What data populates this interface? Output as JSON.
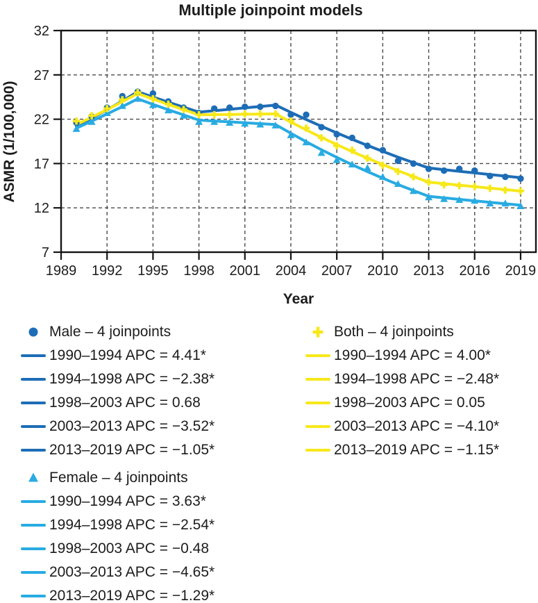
{
  "title": "Multiple joinpoint models",
  "chart_data": {
    "type": "line",
    "title": "Multiple joinpoint models",
    "xlabel": "Year",
    "ylabel": "ASMR (1/100,000)",
    "xlim": [
      1989,
      2020
    ],
    "ylim": [
      7,
      32
    ],
    "x_ticks": [
      1989,
      1992,
      1995,
      1998,
      2001,
      2004,
      2007,
      2010,
      2013,
      2016,
      2019
    ],
    "y_ticks": [
      7,
      12,
      17,
      22,
      27,
      32
    ],
    "grid": "dashed",
    "grid_color": "#4a4a4a",
    "frame_color": "#141414",
    "legend_position": "below",
    "series": [
      {
        "key": "male",
        "name": "Male – 4 joinpoints",
        "marker": "circle",
        "color": "#1d6db6",
        "trend_joinpoints": [
          [
            1990,
            21.2
          ],
          [
            1994,
            25.1
          ],
          [
            1998,
            22.8
          ],
          [
            2003,
            23.6
          ],
          [
            2013,
            16.5
          ],
          [
            2019,
            15.4
          ]
        ],
        "observed": {
          "years": [
            1990,
            1991,
            1992,
            1993,
            1994,
            1995,
            1996,
            1997,
            1998,
            1999,
            2000,
            2001,
            2002,
            2003,
            2004,
            2005,
            2006,
            2007,
            2008,
            2009,
            2010,
            2011,
            2012,
            2013,
            2014,
            2015,
            2016,
            2017,
            2018,
            2019
          ],
          "values": [
            21.6,
            22.3,
            23.3,
            24.6,
            25.1,
            24.9,
            24.0,
            23.3,
            22.7,
            23.2,
            23.3,
            23.4,
            23.4,
            23.5,
            22.5,
            22.5,
            21.1,
            20.3,
            19.9,
            19.0,
            18.5,
            17.3,
            17.0,
            16.4,
            16.2,
            16.4,
            16.2,
            15.6,
            15.5,
            15.3
          ]
        },
        "apc_segments": [
          "1990–1994 APC = 4.41*",
          "1994–1998 APC = −2.38*",
          "1998–2003 APC = 0.68",
          "2003–2013 APC = −3.52*",
          "2013–2019 APC = −1.05*"
        ]
      },
      {
        "key": "female",
        "name": "Female – 4 joinpoints",
        "marker": "triangle",
        "color": "#29abe2",
        "trend_joinpoints": [
          [
            1990,
            21.0
          ],
          [
            1994,
            24.3
          ],
          [
            1998,
            21.9
          ],
          [
            2003,
            21.4
          ],
          [
            2013,
            13.3
          ],
          [
            2019,
            12.3
          ]
        ],
        "observed": {
          "years": [
            1990,
            1991,
            1992,
            1993,
            1994,
            1995,
            1996,
            1997,
            1998,
            1999,
            2000,
            2001,
            2002,
            2003,
            2004,
            2005,
            2006,
            2007,
            2008,
            2009,
            2010,
            2011,
            2012,
            2013,
            2014,
            2015,
            2016,
            2017,
            2018,
            2019
          ],
          "values": [
            20.9,
            21.7,
            22.7,
            23.5,
            24.3,
            23.6,
            23.0,
            22.4,
            21.7,
            21.7,
            21.6,
            21.5,
            21.4,
            21.3,
            20.2,
            19.4,
            18.2,
            17.4,
            16.9,
            16.5,
            15.5,
            14.7,
            13.9,
            13.2,
            13.0,
            12.9,
            12.8,
            12.5,
            12.5,
            12.2
          ]
        },
        "apc_segments": [
          "1990–1994 APC = 3.63*",
          "1994–1998 APC = −2.54*",
          "1998–2003 APC = −0.48",
          "2003–2013 APC = −4.65*",
          "2013–2019 APC = −1.29*"
        ]
      },
      {
        "key": "both",
        "name": "Both – 4 joinpoints",
        "marker": "plus",
        "color": "#f7e81a",
        "trend_joinpoints": [
          [
            1990,
            21.4
          ],
          [
            1994,
            24.9
          ],
          [
            1998,
            22.5
          ],
          [
            2003,
            22.6
          ],
          [
            2013,
            14.9
          ],
          [
            2019,
            13.9
          ]
        ],
        "observed": {
          "years": [
            1990,
            1991,
            1992,
            1993,
            1994,
            1995,
            1996,
            1997,
            1998,
            1999,
            2000,
            2001,
            2002,
            2003,
            2004,
            2005,
            2006,
            2007,
            2008,
            2009,
            2010,
            2011,
            2012,
            2013,
            2014,
            2015,
            2016,
            2017,
            2018,
            2019
          ],
          "values": [
            21.8,
            22.4,
            23.2,
            24.2,
            25.0,
            24.3,
            23.7,
            23.1,
            22.5,
            22.5,
            22.5,
            22.6,
            22.6,
            22.6,
            21.8,
            21.0,
            19.9,
            19.0,
            18.5,
            17.6,
            16.8,
            16.1,
            15.5,
            14.9,
            14.6,
            14.5,
            14.4,
            14.2,
            14.0,
            13.9
          ]
        },
        "apc_segments": [
          "1990–1994 APC = 4.00*",
          "1994–1998 APC = −2.48*",
          "1998–2003 APC = 0.05",
          "2003–2013 APC = −4.10*",
          "2013–2019 APC = −1.15*"
        ]
      }
    ]
  },
  "legend": {
    "columns": [
      [
        "male",
        "female"
      ],
      [
        "both"
      ]
    ]
  }
}
